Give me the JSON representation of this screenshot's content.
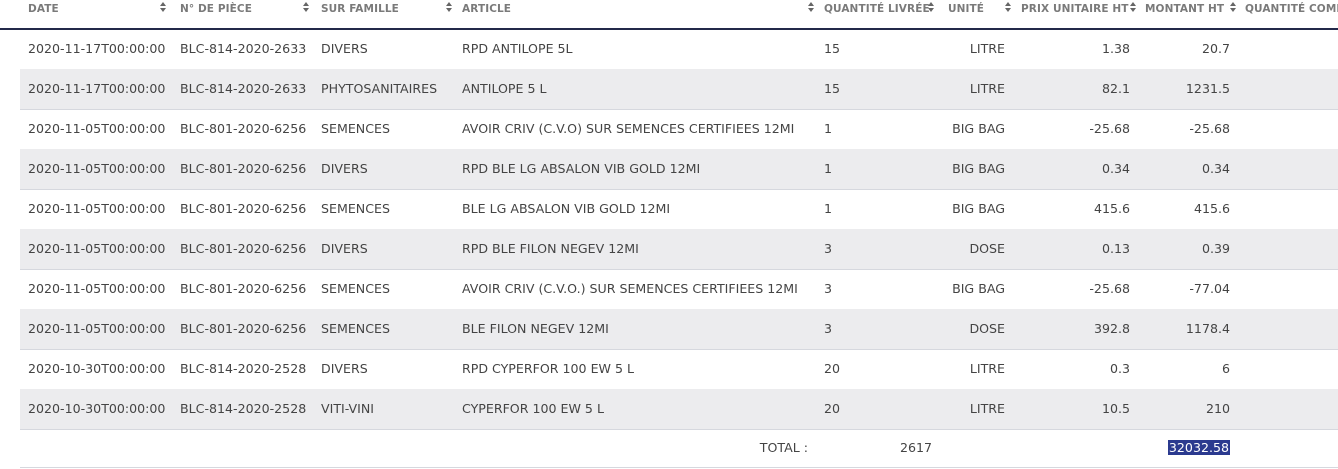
{
  "table": {
    "headers": [
      {
        "label": "DATE",
        "sortable": true
      },
      {
        "label": "N° DE PIÈCE",
        "sortable": true
      },
      {
        "label": "SUR FAMILLE",
        "sortable": true
      },
      {
        "label": "ARTICLE",
        "sortable": true
      },
      {
        "label": "QUANTITÉ LIVRÉE",
        "sortable": true
      },
      {
        "label": "UNITÉ",
        "sortable": true
      },
      {
        "label": "PRIX UNITAIRE HT",
        "sortable": true
      },
      {
        "label": "MONTANT HT",
        "sortable": true
      },
      {
        "label": "QUANTITÉ COMM",
        "sortable": false
      }
    ],
    "rows": [
      [
        "2020-11-17T00:00:00",
        "BLC-814-2020-2633",
        "DIVERS",
        "RPD ANTILOPE 5L",
        "15",
        "LITRE",
        "1.38",
        "20.7"
      ],
      [
        "2020-11-17T00:00:00",
        "BLC-814-2020-2633",
        "PHYTOSANITAIRES",
        "ANTILOPE 5 L",
        "15",
        "LITRE",
        "82.1",
        "1231.5"
      ],
      [
        "2020-11-05T00:00:00",
        "BLC-801-2020-6256",
        "SEMENCES",
        "AVOIR CRIV (C.V.O) SUR SEMENCES CERTIFIEES 12MI",
        "1",
        "BIG BAG",
        "-25.68",
        "-25.68"
      ],
      [
        "2020-11-05T00:00:00",
        "BLC-801-2020-6256",
        "DIVERS",
        "RPD BLE LG ABSALON VIB GOLD 12MI",
        "1",
        "BIG BAG",
        "0.34",
        "0.34"
      ],
      [
        "2020-11-05T00:00:00",
        "BLC-801-2020-6256",
        "SEMENCES",
        "BLE LG ABSALON VIB GOLD 12MI",
        "1",
        "BIG BAG",
        "415.6",
        "415.6"
      ],
      [
        "2020-11-05T00:00:00",
        "BLC-801-2020-6256",
        "DIVERS",
        "RPD BLE FILON NEGEV 12MI",
        "3",
        "DOSE",
        "0.13",
        "0.39"
      ],
      [
        "2020-11-05T00:00:00",
        "BLC-801-2020-6256",
        "SEMENCES",
        "AVOIR CRIV (C.V.O.) SUR SEMENCES CERTIFIEES 12MI",
        "3",
        "BIG BAG",
        "-25.68",
        "-77.04"
      ],
      [
        "2020-11-05T00:00:00",
        "BLC-801-2020-6256",
        "SEMENCES",
        "BLE FILON NEGEV 12MI",
        "3",
        "DOSE",
        "392.8",
        "1178.4"
      ],
      [
        "2020-10-30T00:00:00",
        "BLC-814-2020-2528",
        "DIVERS",
        "RPD CYPERFOR 100 EW 5 L",
        "20",
        "LITRE",
        "0.3",
        "6"
      ],
      [
        "2020-10-30T00:00:00",
        "BLC-814-2020-2528",
        "VITI-VINI",
        "CYPERFOR 100 EW 5 L",
        "20",
        "LITRE",
        "10.5",
        "210"
      ]
    ],
    "total": {
      "label": "TOTAL :",
      "quantity": "2617",
      "amount": "32032.58"
    }
  },
  "colors": {
    "header_border": "#23294a",
    "alt_row": "#ececee",
    "selection": "#2b3a8f"
  }
}
